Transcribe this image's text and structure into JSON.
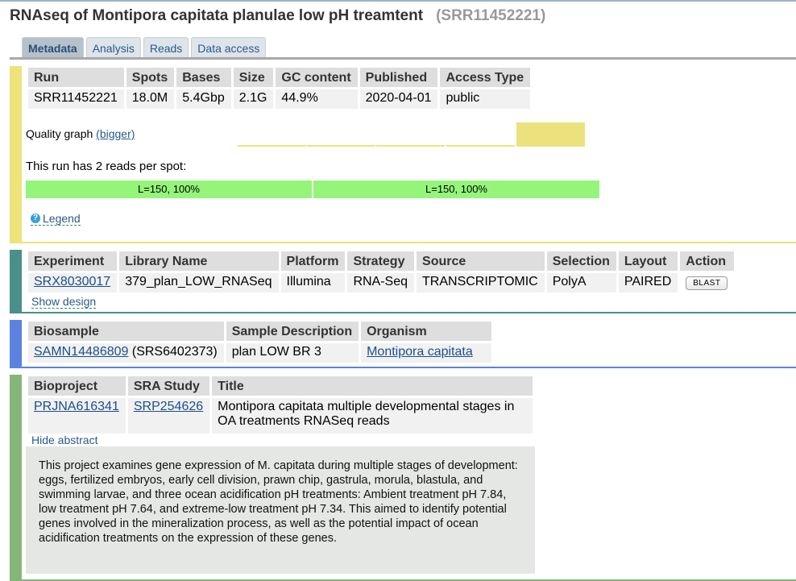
{
  "header": {
    "title": "RNAseq of Montipora capitata planulae low pH treamtent",
    "accession": "(SRR11452221)"
  },
  "tabs": [
    "Metadata",
    "Analysis",
    "Reads",
    "Data access"
  ],
  "run": {
    "headers": [
      "Run",
      "Spots",
      "Bases",
      "Size",
      "GC content",
      "Published",
      "Access Type"
    ],
    "values": [
      "SRR11452221",
      "18.0M",
      "5.4Gbp",
      "2.1G",
      "44.9%",
      "2020-04-01",
      "public"
    ]
  },
  "quality": {
    "label": "Quality graph",
    "bigger": "(bigger)"
  },
  "reads": {
    "text": "This run has 2 reads per spot:",
    "items": [
      "L=150, 100%",
      "L=150, 100%"
    ]
  },
  "legend_label": "Legend",
  "experiment": {
    "headers": [
      "Experiment",
      "Library Name",
      "Platform",
      "Strategy",
      "Source",
      "Selection",
      "Layout",
      "Action"
    ],
    "values": [
      "SRX8030017",
      "379_plan_LOW_RNASeq",
      "Illumina",
      "RNA-Seq",
      "TRANSCRIPTOMIC",
      "PolyA",
      "PAIRED"
    ],
    "blast_label": "BLAST",
    "show_design": "Show design"
  },
  "biosample": {
    "headers": [
      "Biosample",
      "Sample Description",
      "Organism"
    ],
    "biosample_id": "SAMN14486809",
    "srs": "(SRS6402373)",
    "description": "plan LOW BR 3",
    "organism": "Montipora capitata"
  },
  "bioproject": {
    "headers": [
      "Bioproject",
      "SRA Study",
      "Title"
    ],
    "project": "PRJNA616341",
    "study": "SRP254626",
    "title": "Montipora capitata multiple developmental stages in OA treatments RNASeq reads",
    "hide_abstract": "Hide abstract",
    "abstract": "This project examines gene expression of M. capitata during multiple stages of development: eggs, fertilized embryos, early cell division, prawn chip, gastrula, morula, blastula, and swimming larvae, and three ocean acidification pH treatments: Ambient treatment pH 7.84, low treatment pH 7.64, and extreme-low treatment pH 7.34. This aimed to identify potential genes involved in the mineralization process, as well as the potential impact of ocean acidification treatments on the expression of these genes."
  }
}
